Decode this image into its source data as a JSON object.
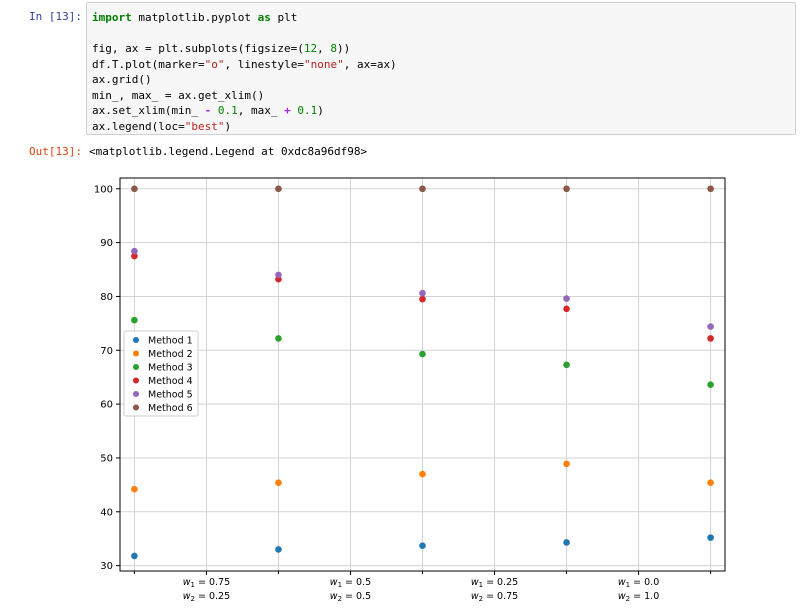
{
  "notebook": {
    "in_prompt": "In [13]:",
    "out_prompt": "Out[13]:",
    "code_lines": [
      "import matplotlib.pyplot as plt",
      "",
      "fig, ax = plt.subplots(figsize=(12, 8))",
      "df.T.plot(marker=\"o\", linestyle=\"none\", ax=ax)",
      "ax.grid()",
      "min_, max_ = ax.get_xlim()",
      "ax.set_xlim(min_ - 0.1, max_ + 0.1)",
      "ax.legend(loc=\"best\")"
    ],
    "output_text": "<matplotlib.legend.Legend at 0xdc8a96df98>"
  },
  "chart_data": {
    "type": "scatter",
    "title": "",
    "xlabel": "",
    "ylabel": "",
    "x_categories": [
      [
        "w1 = 0.75",
        "w2 = 0.25"
      ],
      [
        "w1 = 0.5",
        "w2 = 0.5"
      ],
      [
        "w1 = 0.25",
        "w2 = 0.75"
      ],
      [
        "w1 = 0.0",
        "w2 = 1.0"
      ]
    ],
    "x_tick_positions": [
      0.5,
      1.5,
      2.5,
      3.5
    ],
    "x": [
      0,
      1,
      2,
      3,
      4
    ],
    "xlim": [
      -0.1,
      4.1
    ],
    "ylim": [
      29,
      102
    ],
    "yticks": [
      30,
      40,
      50,
      60,
      70,
      80,
      90,
      100
    ],
    "grid": true,
    "legend_position": "center-left",
    "series": [
      {
        "name": "Method 1",
        "color": "#1f77b4",
        "values": [
          31.8,
          33.0,
          33.7,
          34.3,
          35.2
        ]
      },
      {
        "name": "Method 2",
        "color": "#ff7f0e",
        "values": [
          44.2,
          45.4,
          47.0,
          48.9,
          45.4
        ]
      },
      {
        "name": "Method 3",
        "color": "#2ca02c",
        "values": [
          75.6,
          72.2,
          69.3,
          67.3,
          63.6
        ]
      },
      {
        "name": "Method 4",
        "color": "#d62728",
        "values": [
          87.5,
          83.2,
          79.5,
          77.7,
          72.2
        ]
      },
      {
        "name": "Method 5",
        "color": "#9467bd",
        "values": [
          88.4,
          84.0,
          80.6,
          79.6,
          74.4
        ]
      },
      {
        "name": "Method 6",
        "color": "#8c564b",
        "values": [
          100,
          100,
          100,
          100,
          100
        ]
      }
    ]
  }
}
